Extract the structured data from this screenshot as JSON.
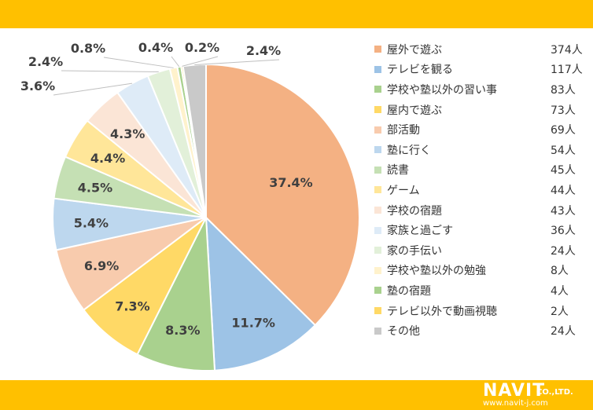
{
  "brand": {
    "logo": "NAVIT",
    "logo_suffix": "CO.,LTD.",
    "url": "www.navit-j.com"
  },
  "chart_data": {
    "type": "pie",
    "start_angle_deg": 0,
    "direction": "clockwise",
    "slices": [
      {
        "label": "屋外で遊ぶ",
        "count": "374人",
        "value": 374,
        "percent_label": "37.4%",
        "color": "#f4b183"
      },
      {
        "label": "テレビを観る",
        "count": "117人",
        "value": 117,
        "percent_label": "11.7%",
        "color": "#9dc3e6"
      },
      {
        "label": "学校や塾以外の習い事",
        "count": "83人",
        "value": 83,
        "percent_label": "8.3%",
        "color": "#a9d18e"
      },
      {
        "label": "屋内で遊ぶ",
        "count": "73人",
        "value": 73,
        "percent_label": "7.3%",
        "color": "#ffd966"
      },
      {
        "label": "部活動",
        "count": "69人",
        "value": 69,
        "percent_label": "6.9%",
        "color": "#f8cbad"
      },
      {
        "label": "塾に行く",
        "count": "54人",
        "value": 54,
        "percent_label": "5.4%",
        "color": "#bdd7ee"
      },
      {
        "label": "読書",
        "count": "45人",
        "value": 45,
        "percent_label": "4.5%",
        "color": "#c5e0b4"
      },
      {
        "label": "ゲーム",
        "count": "44人",
        "value": 44,
        "percent_label": "4.4%",
        "color": "#ffe699"
      },
      {
        "label": "学校の宿題",
        "count": "43人",
        "value": 43,
        "percent_label": "4.3%",
        "color": "#fbe5d6"
      },
      {
        "label": "家族と過ごす",
        "count": "36人",
        "value": 36,
        "percent_label": "3.6%",
        "color": "#deebf7"
      },
      {
        "label": "家の手伝い",
        "count": "24人",
        "value": 24,
        "percent_label": "2.4%",
        "color": "#e2f0d9"
      },
      {
        "label": "学校や塾以外の勉強",
        "count": "8人",
        "value": 8,
        "percent_label": "0.8%",
        "color": "#fff2cc"
      },
      {
        "label": "塾の宿題",
        "count": "4人",
        "value": 4,
        "percent_label": "0.4%",
        "color": "#a9d18e"
      },
      {
        "label": "テレビ以外で動画視聴",
        "count": "2人",
        "value": 2,
        "percent_label": "0.2%",
        "color": "#ffd966"
      },
      {
        "label": "その他",
        "count": "24人",
        "value": 24,
        "percent_label": "2.4%",
        "color": "#c9c9c9"
      }
    ]
  }
}
